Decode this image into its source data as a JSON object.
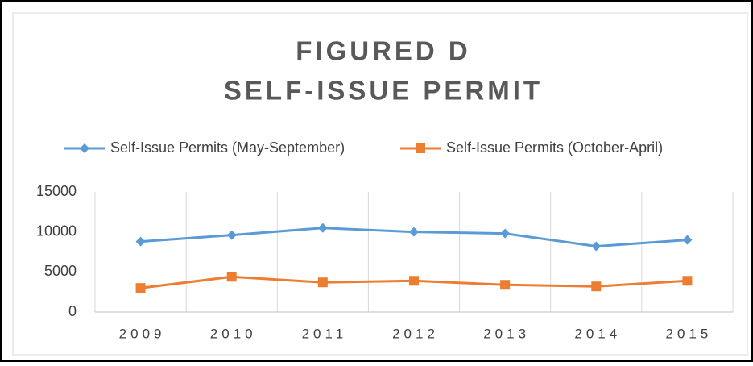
{
  "chart_data": {
    "type": "line",
    "title": [
      "FIGURED D",
      "SELF-ISSUE PERMIT"
    ],
    "categories": [
      "2009",
      "2010",
      "2011",
      "2012",
      "2013",
      "2014",
      "2015"
    ],
    "series": [
      {
        "name": "Self-Issue Permits (May-September)",
        "color": "#5b9bd5",
        "marker": "diamond",
        "values": [
          8800,
          9600,
          10500,
          10000,
          9800,
          8200,
          9000
        ]
      },
      {
        "name": "Self-Issue Permits (October-April)",
        "color": "#ed7d31",
        "marker": "square",
        "values": [
          3000,
          4400,
          3700,
          3900,
          3400,
          3200,
          3900
        ]
      }
    ],
    "ylim": [
      0,
      15000
    ],
    "yticks": [
      0,
      5000,
      10000,
      15000
    ],
    "grid": "x",
    "legend": "top"
  }
}
